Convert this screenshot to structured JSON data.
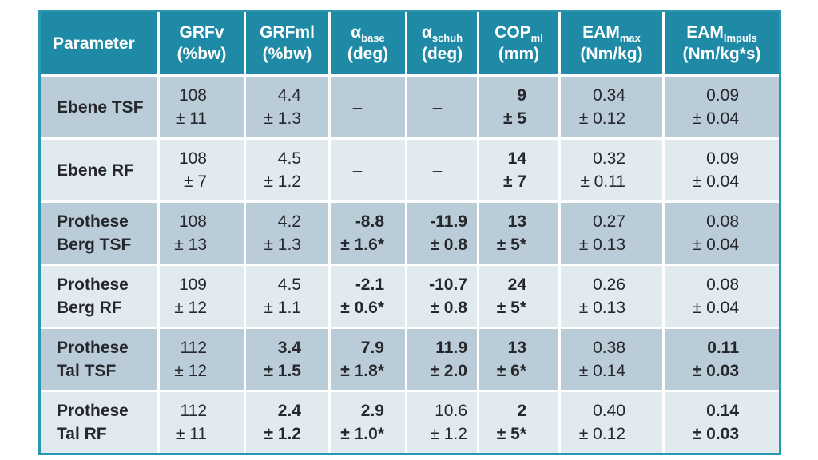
{
  "colors": {
    "header_bg": "#1f8aa6",
    "row_dark": "#b9ccd7",
    "row_light": "#e0eaef",
    "border": "#2a98b2",
    "text": "#26272c",
    "header_text": "#ffffff"
  },
  "table": {
    "header": {
      "param_label": "Parameter",
      "cols": [
        {
          "name": "GRFv",
          "sub": "",
          "unit": "(%bw)"
        },
        {
          "name": "GRFml",
          "sub": "",
          "unit": "(%bw)"
        },
        {
          "name": "α",
          "sub": "base",
          "unit": "(deg)"
        },
        {
          "name": "α",
          "sub": "schuh",
          "unit": "(deg)"
        },
        {
          "name": "COP",
          "sub": "ml",
          "unit": "(mm)"
        },
        {
          "name": "EAM",
          "sub": "max",
          "unit": "(Nm/kg)"
        },
        {
          "name": "EAM",
          "sub": "Impuls",
          "unit": "(Nm/kg*s)"
        }
      ]
    },
    "rows": [
      {
        "label_lines": [
          "Ebene TSF"
        ],
        "cells": [
          {
            "v": "108",
            "d": "± 11",
            "b": false
          },
          {
            "v": "4.4",
            "d": "± 1.3",
            "b": false
          },
          {
            "dash": "–"
          },
          {
            "dash": "–"
          },
          {
            "v": "9",
            "d": "± 5",
            "b": true
          },
          {
            "v": "0.34",
            "d": "± 0.12",
            "b": false
          },
          {
            "v": "0.09",
            "d": "± 0.04",
            "b": false
          }
        ]
      },
      {
        "label_lines": [
          "Ebene RF"
        ],
        "cells": [
          {
            "v": "108",
            "d": "± 7",
            "b": false
          },
          {
            "v": "4.5",
            "d": "± 1.2",
            "b": false
          },
          {
            "dash": "–"
          },
          {
            "dash": "–"
          },
          {
            "v": "14",
            "d": "± 7",
            "b": true
          },
          {
            "v": "0.32",
            "d": "± 0.11",
            "b": false
          },
          {
            "v": "0.09",
            "d": "± 0.04",
            "b": false
          }
        ]
      },
      {
        "label_lines": [
          "Prothese",
          "Berg TSF"
        ],
        "cells": [
          {
            "v": "108",
            "d": "± 13",
            "b": false
          },
          {
            "v": "4.2",
            "d": "± 1.3",
            "b": false
          },
          {
            "v": "-8.8",
            "d": "± 1.6*",
            "b": true
          },
          {
            "v": "-11.9",
            "d": "± 0.8",
            "b": true
          },
          {
            "v": "13",
            "d": "± 5*",
            "b": true
          },
          {
            "v": "0.27",
            "d": "± 0.13",
            "b": false
          },
          {
            "v": "0.08",
            "d": "± 0.04",
            "b": false
          }
        ]
      },
      {
        "label_lines": [
          "Prothese",
          "Berg RF"
        ],
        "cells": [
          {
            "v": "109",
            "d": "± 12",
            "b": false
          },
          {
            "v": "4.5",
            "d": "± 1.1",
            "b": false
          },
          {
            "v": "-2.1",
            "d": "± 0.6*",
            "b": true
          },
          {
            "v": "-10.7",
            "d": "± 0.8",
            "b": true
          },
          {
            "v": "24",
            "d": "± 5*",
            "b": true
          },
          {
            "v": "0.26",
            "d": "± 0.13",
            "b": false
          },
          {
            "v": "0.08",
            "d": "± 0.04",
            "b": false
          }
        ]
      },
      {
        "label_lines": [
          "Prothese",
          "Tal TSF"
        ],
        "cells": [
          {
            "v": "112",
            "d": "± 12",
            "b": false
          },
          {
            "v": "3.4",
            "d": "± 1.5",
            "b": true
          },
          {
            "v": "7.9",
            "d": "± 1.8*",
            "b": true
          },
          {
            "v": "11.9",
            "d": "± 2.0",
            "b": true
          },
          {
            "v": "13",
            "d": "± 6*",
            "b": true
          },
          {
            "v": "0.38",
            "d": "± 0.14",
            "b": false
          },
          {
            "v": "0.11",
            "d": "± 0.03",
            "b": true
          }
        ]
      },
      {
        "label_lines": [
          "Prothese",
          "Tal RF"
        ],
        "cells": [
          {
            "v": "112",
            "d": "± 11",
            "b": false
          },
          {
            "v": "2.4",
            "d": "± 1.2",
            "b": true
          },
          {
            "v": "2.9",
            "d": "± 1.0*",
            "b": true
          },
          {
            "v": "10.6",
            "d": "± 1.2",
            "b": false
          },
          {
            "v": "2",
            "d": "± 5*",
            "b": true
          },
          {
            "v": "0.40",
            "d": "± 0.12",
            "b": false
          },
          {
            "v": "0.14",
            "d": "± 0.03",
            "b": true
          }
        ]
      }
    ]
  },
  "chart_data": {
    "type": "table",
    "columns": [
      "Parameter",
      "GRFv (%bw)",
      "GRFml (%bw)",
      "αbase (deg)",
      "αschuh (deg)",
      "COPml (mm)",
      "EAMmax (Nm/kg)",
      "EAMImpuls (Nm/kg*s)"
    ],
    "rows": [
      [
        "Ebene TSF",
        "108 ± 11",
        "4.4 ± 1.3",
        "–",
        "–",
        "9 ± 5",
        "0.34 ± 0.12",
        "0.09 ± 0.04"
      ],
      [
        "Ebene RF",
        "108 ± 7",
        "4.5 ± 1.2",
        "–",
        "–",
        "14 ± 7",
        "0.32 ± 0.11",
        "0.09 ± 0.04"
      ],
      [
        "Prothese Berg TSF",
        "108 ± 13",
        "4.2 ± 1.3",
        "-8.8 ± 1.6*",
        "-11.9 ± 0.8",
        "13 ± 5*",
        "0.27 ± 0.13",
        "0.08 ± 0.04"
      ],
      [
        "Prothese Berg RF",
        "109 ± 12",
        "4.5 ± 1.1",
        "-2.1 ± 0.6*",
        "-10.7 ± 0.8",
        "24 ± 5*",
        "0.26 ± 0.13",
        "0.08 ± 0.04"
      ],
      [
        "Prothese Tal TSF",
        "112 ± 12",
        "3.4 ± 1.5",
        "7.9 ± 1.8*",
        "11.9 ± 2.0",
        "13 ± 6*",
        "0.38 ± 0.14",
        "0.11 ± 0.03"
      ],
      [
        "Prothese Tal RF",
        "112 ± 11",
        "2.4 ± 1.2",
        "2.9 ± 1.0*",
        "10.6 ± 1.2",
        "2 ± 5*",
        "0.40 ± 0.12",
        "0.14 ± 0.03"
      ]
    ],
    "grid": true,
    "legend_position": "none"
  }
}
